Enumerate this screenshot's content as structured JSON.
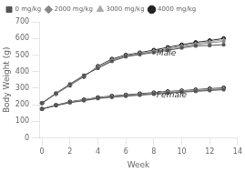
{
  "chart_data": {
    "type": "line",
    "x": [
      0,
      1,
      2,
      3,
      4,
      5,
      6,
      7,
      8,
      9,
      10,
      11,
      12,
      13
    ],
    "series": [
      {
        "name": "0 mg/kg",
        "color": "#555555",
        "marker": "square",
        "values": [
          210,
          270,
          325,
          378,
          420,
          462,
          490,
          503,
          515,
          528,
          543,
          555,
          558,
          562
        ]
      },
      {
        "name": "2000 mg/kg",
        "color": "#888888",
        "marker": "diamond",
        "values": [
          210,
          268,
          322,
          375,
          425,
          468,
          494,
          507,
          521,
          535,
          550,
          563,
          573,
          582
        ]
      },
      {
        "name": "3000 mg/kg",
        "color": "#aaaaaa",
        "marker": "triangle",
        "values": [
          210,
          267,
          320,
          373,
          428,
          472,
          496,
          510,
          525,
          540,
          555,
          568,
          580,
          592
        ]
      },
      {
        "name": "4000 mg/kg",
        "color": "#222222",
        "marker": "circle",
        "values": [
          210,
          266,
          318,
          370,
          432,
          476,
          500,
          514,
          530,
          546,
          562,
          576,
          587,
          600
        ]
      },
      {
        "color": "#555555",
        "marker": "square",
        "values": [
          175,
          195,
          213,
          225,
          238,
          246,
          252,
          258,
          264,
          270,
          276,
          281,
          286,
          291
        ]
      },
      {
        "color": "#888888",
        "marker": "diamond",
        "values": [
          175,
          196,
          215,
          227,
          240,
          248,
          255,
          261,
          267,
          274,
          279,
          284,
          290,
          295
        ]
      },
      {
        "color": "#aaaaaa",
        "marker": "triangle",
        "values": [
          175,
          197,
          216,
          229,
          242,
          251,
          258,
          264,
          270,
          277,
          283,
          288,
          294,
          299
        ]
      },
      {
        "color": "#222222",
        "marker": "circle",
        "values": [
          175,
          198,
          218,
          231,
          244,
          253,
          260,
          267,
          273,
          280,
          285,
          291,
          297,
          302
        ]
      }
    ],
    "annotations": [
      {
        "text": "Male",
        "x": 8.2,
        "y": 510
      },
      {
        "text": "Female",
        "x": 8.2,
        "y": 258
      }
    ],
    "xlabel": "Week",
    "ylabel": "Body Weight (g)",
    "xlim": [
      -0.2,
      14
    ],
    "xticks": [
      0,
      2,
      4,
      6,
      8,
      10,
      12,
      14
    ],
    "ylim": [
      0,
      700
    ],
    "yticks": [
      0,
      100,
      200,
      300,
      400,
      500,
      600,
      700
    ],
    "legend": "upper left",
    "grid": false
  }
}
